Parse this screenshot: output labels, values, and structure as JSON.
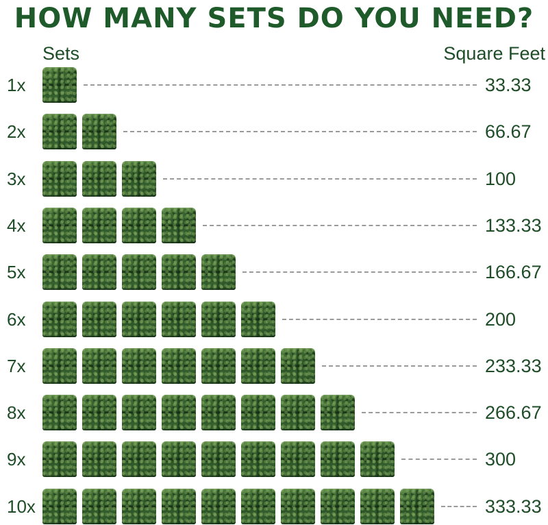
{
  "title": "HOW MANY SETS DO YOU NEED?",
  "headers": {
    "sets": "Sets",
    "square_feet": "Square Feet"
  },
  "rows": [
    {
      "label": "1x",
      "sets": 1,
      "square_feet": "33.33"
    },
    {
      "label": "2x",
      "sets": 2,
      "square_feet": "66.67"
    },
    {
      "label": "3x",
      "sets": 3,
      "square_feet": "100"
    },
    {
      "label": "4x",
      "sets": 4,
      "square_feet": "133.33"
    },
    {
      "label": "5x",
      "sets": 5,
      "square_feet": "166.67"
    },
    {
      "label": "6x",
      "sets": 6,
      "square_feet": "200"
    },
    {
      "label": "7x",
      "sets": 7,
      "square_feet": "233.33"
    },
    {
      "label": "8x",
      "sets": 8,
      "square_feet": "266.67"
    },
    {
      "label": "9x",
      "sets": 9,
      "square_feet": "300"
    },
    {
      "label": "10x",
      "sets": 10,
      "square_feet": "333.33"
    }
  ],
  "colors": {
    "title": "#1e5a2a",
    "text": "#1e4d28",
    "panel": "#2f5a2a",
    "leader": "#9a9a9a"
  }
}
